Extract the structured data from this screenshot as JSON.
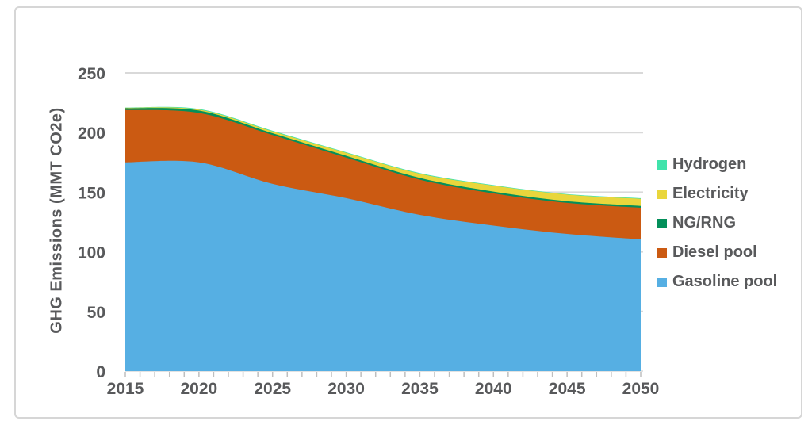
{
  "chart_data": {
    "type": "area",
    "stacked": true,
    "title": "",
    "xlabel": "",
    "ylabel": "GHG Emissions (MMT CO2e)",
    "x": [
      2015,
      2020,
      2025,
      2030,
      2035,
      2040,
      2045,
      2050
    ],
    "series": [
      {
        "name": "Gasoline pool",
        "color": "#56AFE3",
        "values": [
          175,
          175,
          157,
          145,
          131,
          122,
          115,
          110.5
        ]
      },
      {
        "name": "Diesel pool",
        "color": "#CB5A12",
        "values": [
          44,
          41.5,
          41,
          34,
          29.5,
          27,
          26,
          26.5
        ]
      },
      {
        "name": "NG/RNG",
        "color": "#038F5A",
        "values": [
          1.5,
          2,
          1.5,
          1.5,
          1.5,
          1.5,
          1.5,
          1.5
        ]
      },
      {
        "name": "Electricity",
        "color": "#E9D63C",
        "values": [
          0.3,
          0.8,
          1.5,
          2.5,
          3.5,
          5,
          5.5,
          6
        ]
      },
      {
        "name": "Hydrogen",
        "color": "#40E3AB",
        "values": [
          0.2,
          0.5,
          0.5,
          0.5,
          0.5,
          0.5,
          0.5,
          0.5
        ]
      }
    ],
    "legend_order": [
      "Hydrogen",
      "Electricity",
      "NG/RNG",
      "Diesel pool",
      "Gasoline pool"
    ],
    "legend_position": "right",
    "yticks": [
      0,
      50,
      100,
      150,
      200,
      250
    ],
    "ylim": [
      0,
      250
    ],
    "xlim": [
      2015,
      2050
    ],
    "x_minor_tick_step": 1,
    "grid": "horizontal",
    "style": {
      "gridline_color": "#D9D9D9",
      "tick_color": "#BFBFBF",
      "text_color": "#58595B",
      "border_color": "#D6D6D6",
      "background": "#FFFFFF"
    }
  }
}
